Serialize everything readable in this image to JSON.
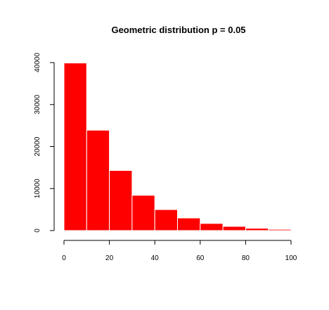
{
  "chart_data": {
    "type": "bar",
    "title": "Geometric distribution p = 0.05",
    "xlabel": "",
    "ylabel": "",
    "bin_edges": [
      0,
      10,
      20,
      30,
      40,
      50,
      60,
      70,
      80,
      90,
      100
    ],
    "values": [
      39900,
      23900,
      14300,
      8400,
      5000,
      3000,
      1700,
      1000,
      550,
      300
    ],
    "xlim": [
      0,
      100
    ],
    "ylim": [
      0,
      40000
    ],
    "x_ticks": [
      "0",
      "20",
      "40",
      "60",
      "80",
      "100"
    ],
    "y_ticks": [
      "0",
      "10000",
      "20000",
      "30000",
      "40000"
    ],
    "bar_color": "#ff0000",
    "bar_edge_color": "#ffffff",
    "grid": false,
    "legend": "none"
  }
}
